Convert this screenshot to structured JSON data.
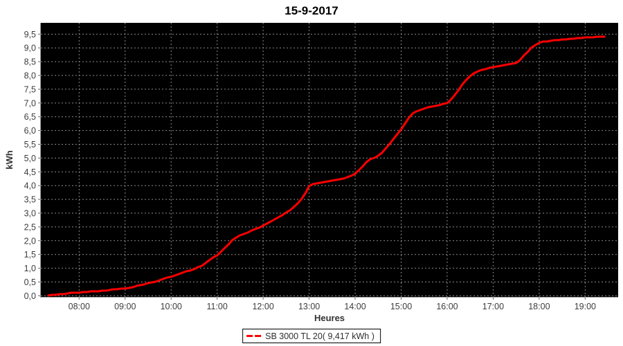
{
  "chart_data": {
    "type": "line",
    "title": "15-9-2017",
    "xlabel": "Heures",
    "ylabel": "kWh",
    "legend_label": "SB 3000 TL 20( 9,417 kWh )",
    "legend_position": "bottom-center",
    "grid": "dashed",
    "colors": {
      "plot_background": "#000000",
      "line": "#ff0000",
      "gridline": "#8c8c8c",
      "axis": "#999999",
      "tick": "#666666",
      "tick_label": "#3d3d3d"
    },
    "xlim_hours": [
      7.168,
      19.717
    ],
    "ylim": [
      -0.04,
      9.91
    ],
    "x_ticks": [
      {
        "v": 8,
        "label": "08:00"
      },
      {
        "v": 9,
        "label": "09:00"
      },
      {
        "v": 10,
        "label": "10:00"
      },
      {
        "v": 11,
        "label": "11:00"
      },
      {
        "v": 12,
        "label": "12:00"
      },
      {
        "v": 13,
        "label": "13:00"
      },
      {
        "v": 14,
        "label": "14:00"
      },
      {
        "v": 15,
        "label": "15:00"
      },
      {
        "v": 16,
        "label": "16:00"
      },
      {
        "v": 17,
        "label": "17:00"
      },
      {
        "v": 18,
        "label": "18:00"
      },
      {
        "v": 19,
        "label": "19:00"
      }
    ],
    "y_ticks": [
      {
        "v": 0.0,
        "label": "0,0"
      },
      {
        "v": 0.5,
        "label": "0,5"
      },
      {
        "v": 1.0,
        "label": "1,0"
      },
      {
        "v": 1.5,
        "label": "1,5"
      },
      {
        "v": 2.0,
        "label": "2,0"
      },
      {
        "v": 2.5,
        "label": "2,5"
      },
      {
        "v": 3.0,
        "label": "3,0"
      },
      {
        "v": 3.5,
        "label": "3,5"
      },
      {
        "v": 4.0,
        "label": "4,0"
      },
      {
        "v": 4.5,
        "label": "4,5"
      },
      {
        "v": 5.0,
        "label": "5,0"
      },
      {
        "v": 5.5,
        "label": "5,5"
      },
      {
        "v": 6.0,
        "label": "6,0"
      },
      {
        "v": 6.5,
        "label": "6,5"
      },
      {
        "v": 7.0,
        "label": "7,0"
      },
      {
        "v": 7.5,
        "label": "7,5"
      },
      {
        "v": 8.0,
        "label": "8,0"
      },
      {
        "v": 8.5,
        "label": "8,5"
      },
      {
        "v": 9.0,
        "label": "9,0"
      },
      {
        "v": 9.5,
        "label": "9,5"
      }
    ],
    "series": [
      {
        "name": "SB 3000 TL 20",
        "total_kwh": "9,417",
        "points": [
          [
            7.33,
            0.02
          ],
          [
            7.42,
            0.03
          ],
          [
            7.5,
            0.04
          ],
          [
            7.58,
            0.05
          ],
          [
            7.67,
            0.07
          ],
          [
            7.75,
            0.08
          ],
          [
            7.83,
            0.1
          ],
          [
            7.92,
            0.11
          ],
          [
            8.0,
            0.12
          ],
          [
            8.17,
            0.14
          ],
          [
            8.33,
            0.16
          ],
          [
            8.5,
            0.18
          ],
          [
            8.67,
            0.21
          ],
          [
            8.83,
            0.24
          ],
          [
            9.0,
            0.27
          ],
          [
            9.17,
            0.32
          ],
          [
            9.33,
            0.38
          ],
          [
            9.5,
            0.45
          ],
          [
            9.67,
            0.52
          ],
          [
            9.83,
            0.61
          ],
          [
            10.0,
            0.7
          ],
          [
            10.17,
            0.8
          ],
          [
            10.33,
            0.88
          ],
          [
            10.5,
            0.97
          ],
          [
            10.67,
            1.1
          ],
          [
            10.83,
            1.28
          ],
          [
            11.0,
            1.48
          ],
          [
            11.08,
            1.6
          ],
          [
            11.17,
            1.75
          ],
          [
            11.25,
            1.88
          ],
          [
            11.33,
            2.02
          ],
          [
            11.42,
            2.12
          ],
          [
            11.5,
            2.2
          ],
          [
            11.67,
            2.3
          ],
          [
            11.83,
            2.42
          ],
          [
            12.0,
            2.55
          ],
          [
            12.17,
            2.7
          ],
          [
            12.33,
            2.85
          ],
          [
            12.5,
            3.02
          ],
          [
            12.58,
            3.11
          ],
          [
            12.67,
            3.22
          ],
          [
            12.75,
            3.35
          ],
          [
            12.83,
            3.5
          ],
          [
            12.92,
            3.72
          ],
          [
            13.0,
            3.98
          ],
          [
            13.08,
            4.05
          ],
          [
            13.17,
            4.08
          ],
          [
            13.33,
            4.13
          ],
          [
            13.5,
            4.18
          ],
          [
            13.67,
            4.23
          ],
          [
            13.83,
            4.3
          ],
          [
            14.0,
            4.42
          ],
          [
            14.08,
            4.55
          ],
          [
            14.17,
            4.72
          ],
          [
            14.25,
            4.85
          ],
          [
            14.33,
            4.95
          ],
          [
            14.42,
            5.02
          ],
          [
            14.5,
            5.08
          ],
          [
            14.58,
            5.18
          ],
          [
            14.67,
            5.35
          ],
          [
            14.75,
            5.52
          ],
          [
            14.83,
            5.7
          ],
          [
            15.0,
            6.05
          ],
          [
            15.08,
            6.25
          ],
          [
            15.17,
            6.48
          ],
          [
            15.25,
            6.62
          ],
          [
            15.33,
            6.7
          ],
          [
            15.5,
            6.8
          ],
          [
            15.67,
            6.87
          ],
          [
            15.83,
            6.93
          ],
          [
            16.0,
            7.0
          ],
          [
            16.08,
            7.12
          ],
          [
            16.17,
            7.3
          ],
          [
            16.25,
            7.48
          ],
          [
            16.33,
            7.68
          ],
          [
            16.42,
            7.85
          ],
          [
            16.5,
            7.97
          ],
          [
            16.58,
            8.08
          ],
          [
            16.67,
            8.15
          ],
          [
            16.83,
            8.23
          ],
          [
            17.0,
            8.3
          ],
          [
            17.17,
            8.36
          ],
          [
            17.33,
            8.4
          ],
          [
            17.5,
            8.45
          ],
          [
            17.58,
            8.55
          ],
          [
            17.67,
            8.72
          ],
          [
            17.75,
            8.85
          ],
          [
            17.83,
            9.0
          ],
          [
            17.92,
            9.1
          ],
          [
            18.0,
            9.18
          ],
          [
            18.08,
            9.22
          ],
          [
            18.17,
            9.24
          ],
          [
            18.33,
            9.27
          ],
          [
            18.5,
            9.3
          ],
          [
            18.67,
            9.32
          ],
          [
            18.83,
            9.35
          ],
          [
            19.0,
            9.37
          ],
          [
            19.17,
            9.39
          ],
          [
            19.33,
            9.41
          ],
          [
            19.42,
            9.417
          ]
        ]
      }
    ]
  }
}
